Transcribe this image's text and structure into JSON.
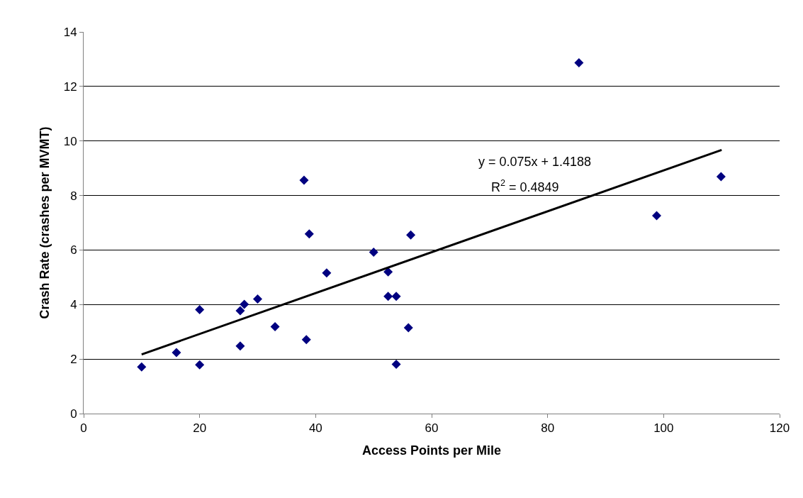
{
  "chart_data": {
    "type": "scatter",
    "xlabel": "Access Points per Mile",
    "ylabel": "Crash Rate (crashes per MVMT)",
    "xlim": [
      0,
      120
    ],
    "xticks": [
      0,
      20,
      40,
      60,
      80,
      100,
      120
    ],
    "ylim": [
      0,
      14
    ],
    "yticks": [
      0,
      2,
      4,
      6,
      8,
      10,
      12,
      14
    ],
    "grid": "y",
    "annotations": [
      "y = 0.075x + 1.4188",
      "R$^{2}$ = 0.4849"
    ],
    "series": [
      {
        "marker": "diamond",
        "color": "#000080",
        "x": [
          10,
          16,
          20,
          20,
          27,
          27,
          27.7,
          30,
          33,
          38,
          38.4,
          38.9,
          41.9,
          50,
          52.5,
          52.5,
          53.9,
          53.9,
          56,
          56.4,
          85.4,
          98.8,
          109.9
        ],
        "values": [
          1.71,
          2.24,
          3.81,
          1.79,
          3.77,
          2.48,
          4.01,
          4.2,
          3.19,
          8.56,
          2.71,
          6.59,
          5.16,
          5.92,
          5.2,
          4.3,
          4.3,
          1.81,
          3.15,
          6.55,
          12.87,
          7.26,
          8.69
        ]
      },
      {
        "type": "line",
        "color": "#000000",
        "line_style": "solid",
        "x": [
          10,
          110
        ],
        "values": [
          2.17,
          9.67
        ]
      }
    ]
  }
}
